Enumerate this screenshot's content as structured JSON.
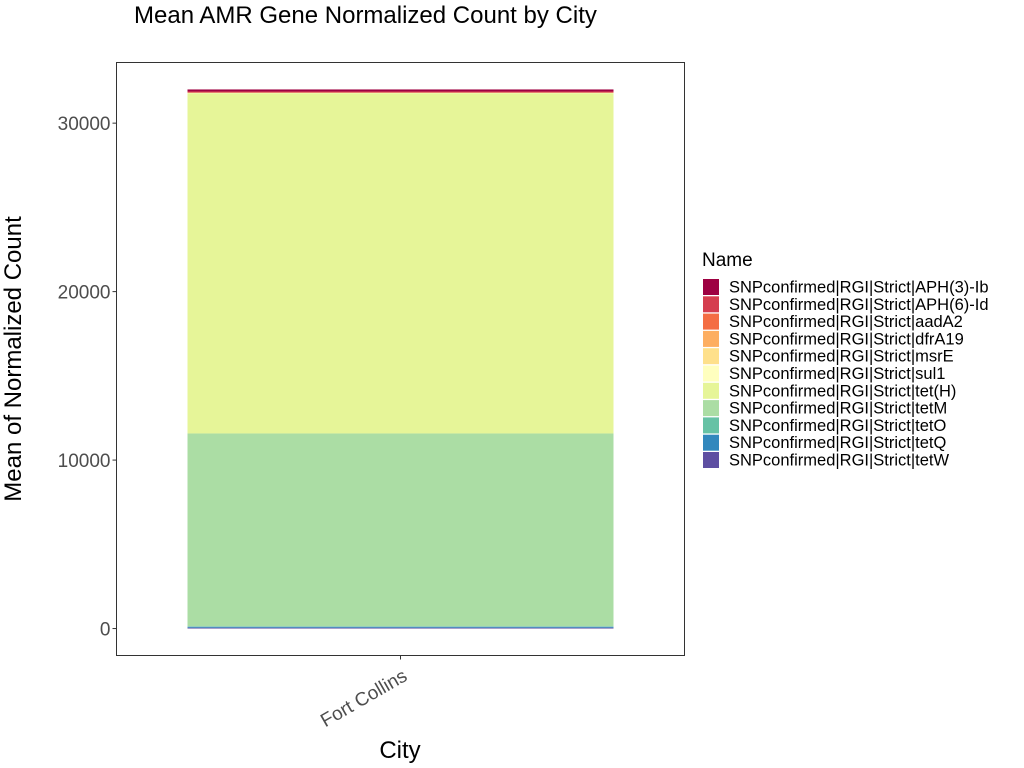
{
  "chart_data": {
    "type": "bar",
    "stacked": true,
    "title": "Mean AMR Gene Normalized Count by City",
    "xlabel": "City",
    "ylabel": "Mean of Normalized Count",
    "categories": [
      "Fort Collins"
    ],
    "ylim": [
      -1600,
      33600
    ],
    "yticks": [
      0,
      10000,
      20000,
      30000
    ],
    "legend_title": "Name",
    "legend_position": "right",
    "series": [
      {
        "name": "SNPconfirmed|RGI|Strict|APH(3)-Ib",
        "color": "#9E0142",
        "values": [
          120
        ]
      },
      {
        "name": "SNPconfirmed|RGI|Strict|APH(6)-Id",
        "color": "#D53E4F",
        "values": [
          60
        ]
      },
      {
        "name": "SNPconfirmed|RGI|Strict|aadA2",
        "color": "#F46D43",
        "values": [
          10
        ]
      },
      {
        "name": "SNPconfirmed|RGI|Strict|dfrA19",
        "color": "#FDAE61",
        "values": [
          10
        ]
      },
      {
        "name": "SNPconfirmed|RGI|Strict|msrE",
        "color": "#FEE08B",
        "values": [
          10
        ]
      },
      {
        "name": "SNPconfirmed|RGI|Strict|sul1",
        "color": "#FFFFBF",
        "values": [
          10
        ]
      },
      {
        "name": "SNPconfirmed|RGI|Strict|tet(H)",
        "color": "#E6F598",
        "values": [
          20200
        ]
      },
      {
        "name": "SNPconfirmed|RGI|Strict|tetM",
        "color": "#ABDDA4",
        "values": [
          11450
        ]
      },
      {
        "name": "SNPconfirmed|RGI|Strict|tetO",
        "color": "#66C2A5",
        "values": [
          20
        ]
      },
      {
        "name": "SNPconfirmed|RGI|Strict|tetQ",
        "color": "#3288BD",
        "values": [
          60
        ]
      },
      {
        "name": "SNPconfirmed|RGI|Strict|tetW",
        "color": "#5E4FA2",
        "values": [
          50
        ]
      }
    ]
  }
}
